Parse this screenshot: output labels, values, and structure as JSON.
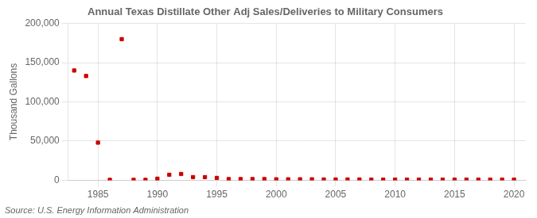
{
  "chart_data": {
    "type": "scatter",
    "title": "Annual Texas Distillate Other Adj Sales/Deliveries to Military Consumers",
    "ylabel": "Thousand Gallons",
    "annotations": [
      "Source: U.S. Energy Information Administration"
    ],
    "x": [
      1983,
      1984,
      1985,
      1986,
      1987,
      1988,
      1989,
      1990,
      1991,
      1992,
      1993,
      1994,
      1995,
      1996,
      1997,
      1998,
      1999,
      2000,
      2001,
      2002,
      2003,
      2004,
      2005,
      2006,
      2007,
      2008,
      2009,
      2010,
      2011,
      2012,
      2013,
      2014,
      2015,
      2016,
      2017,
      2018,
      2019,
      2020
    ],
    "values": [
      140000,
      133000,
      48000,
      500,
      180000,
      500,
      500,
      2000,
      7000,
      8000,
      4000,
      4000,
      3000,
      1500,
      1500,
      1500,
      1500,
      1200,
      1200,
      1200,
      1200,
      1000,
      1000,
      1000,
      1000,
      800,
      800,
      800,
      800,
      800,
      800,
      800,
      800,
      800,
      800,
      800,
      800,
      800
    ],
    "color": "#cc0000",
    "marker": "square",
    "xlim": [
      1982.5,
      2021
    ],
    "xticks": [
      1985,
      1990,
      1995,
      2000,
      2005,
      2010,
      2015,
      2020
    ],
    "ylim": [
      0,
      200000
    ],
    "yticks": [
      0,
      {
        "value": 50000,
        "label": "50,000"
      },
      {
        "value": 100000,
        "label": "100,000"
      },
      {
        "value": 150000,
        "label": "150,000"
      },
      {
        "value": 200000,
        "label": "200,000"
      }
    ],
    "grid": true
  }
}
